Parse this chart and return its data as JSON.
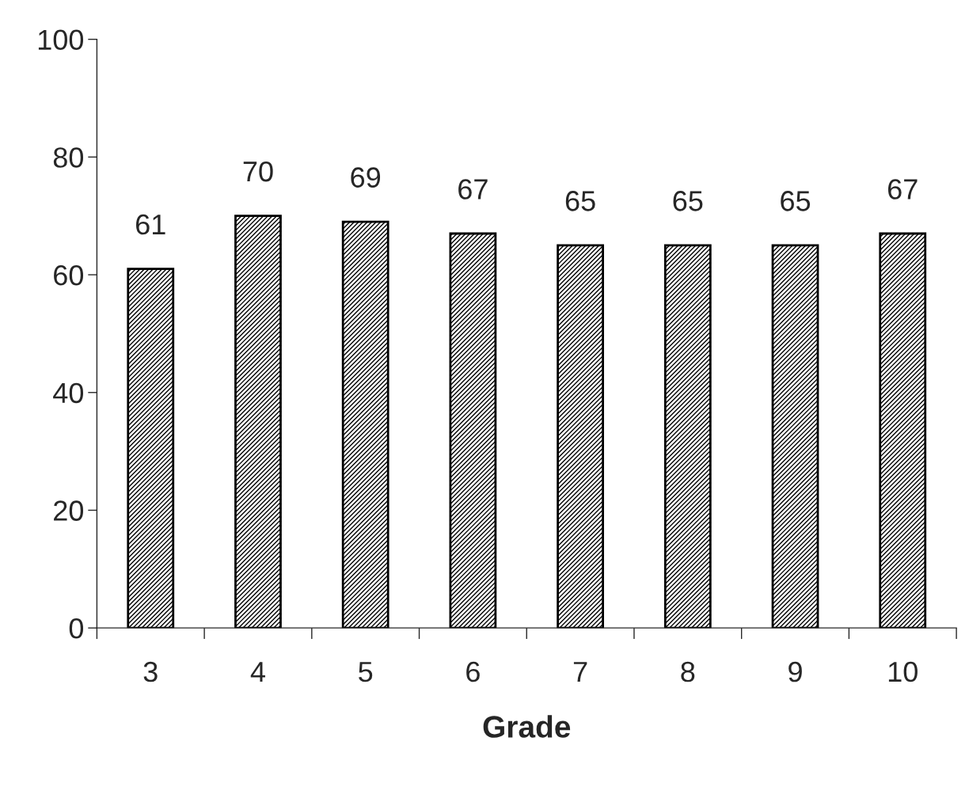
{
  "chart_data": {
    "type": "bar",
    "xlabel": "Grade",
    "categories": [
      "3",
      "4",
      "5",
      "6",
      "7",
      "8",
      "9",
      "10"
    ],
    "values": [
      61,
      70,
      69,
      67,
      65,
      65,
      65,
      67
    ],
    "color": "#000000",
    "ylim": [
      0,
      100
    ],
    "yticks": [
      0,
      20,
      40,
      60,
      80,
      100
    ],
    "data_labels": true,
    "grid": false
  }
}
